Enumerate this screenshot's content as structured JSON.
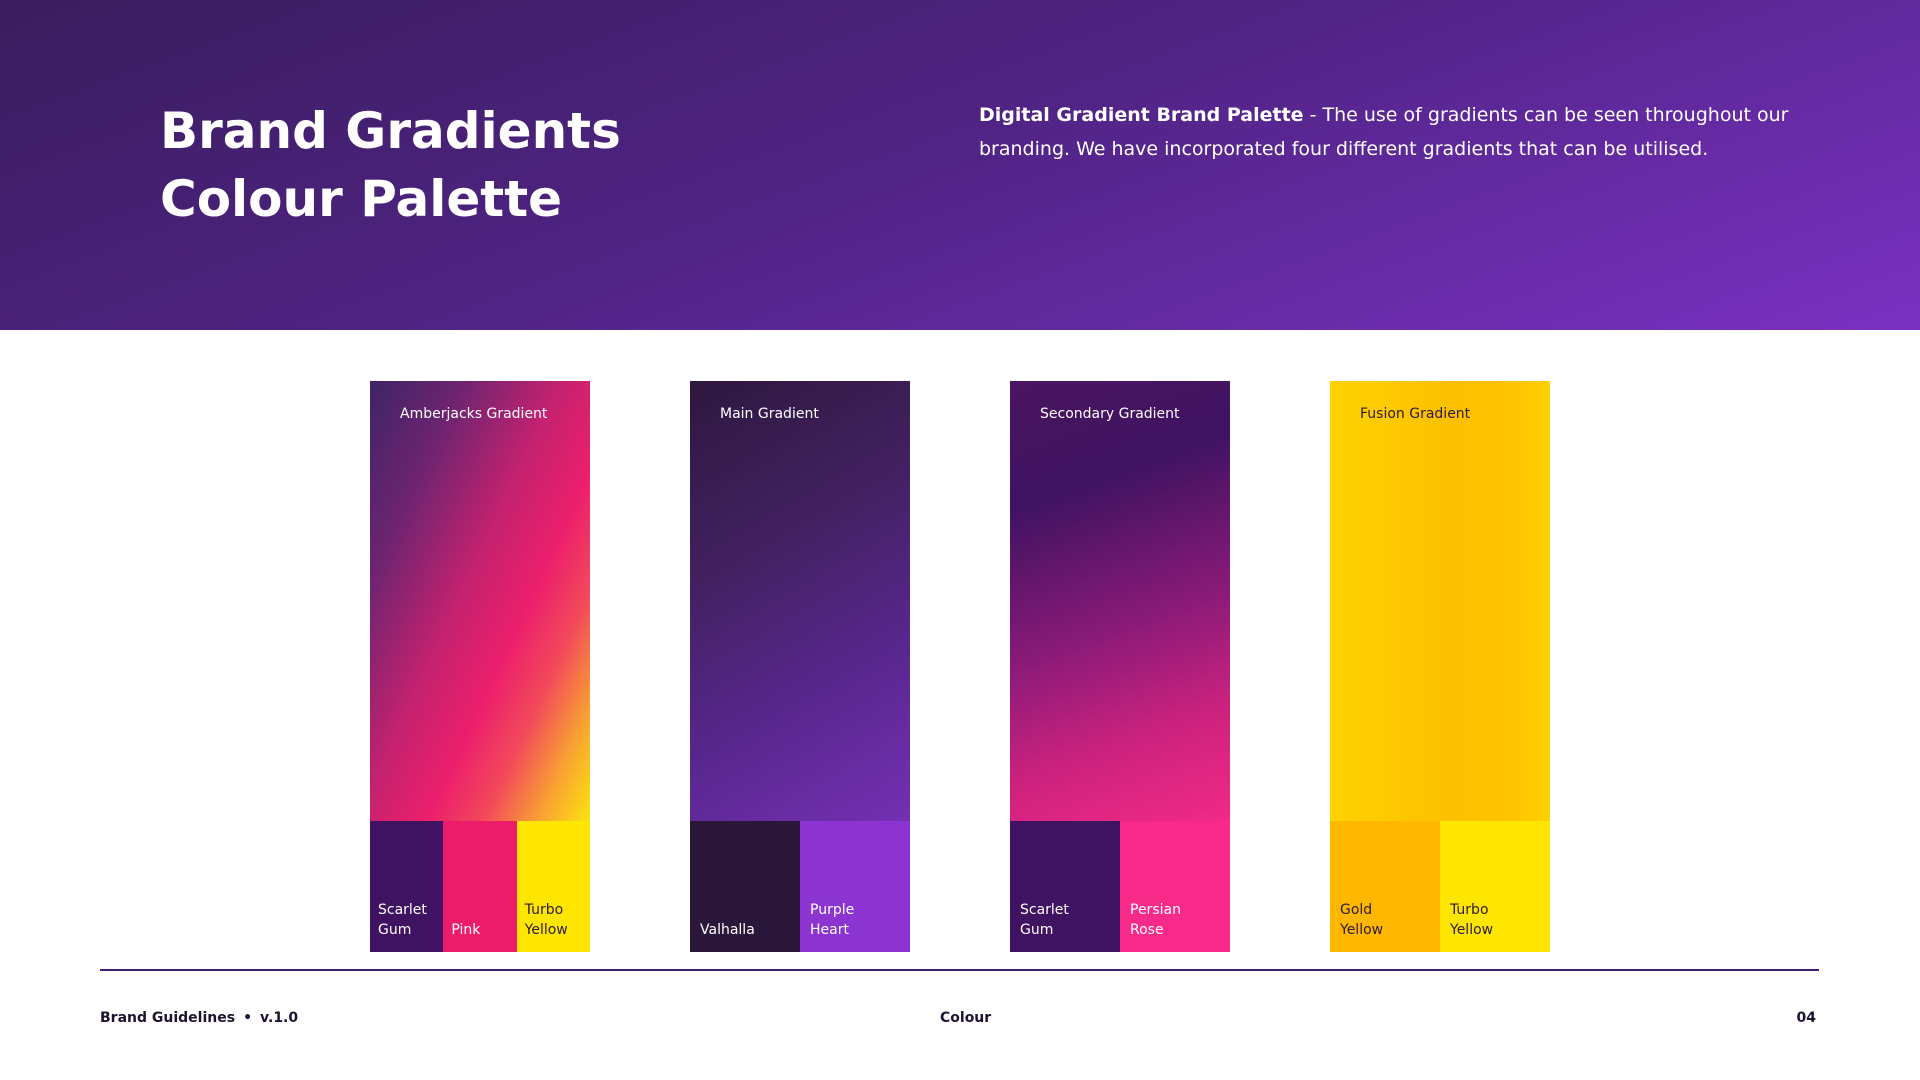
{
  "header": {
    "title_line1": "Brand Gradients",
    "title_line2": "Colour Palette",
    "description_bold": "Digital Gradient Brand Palette",
    "description_rest": " - The use of gradients can be seen throughout our branding. We have incorporated four different gradients that can be utilised.",
    "background_colors": [
      "#3a1d5e",
      "#7a31c2"
    ]
  },
  "gradients": [
    {
      "label": "Amberjacks Gradient",
      "swatches": [
        {
          "name": "Scarlet Gum",
          "color": "#3f1361"
        },
        {
          "name": "Pink",
          "color": "#ec1c6a"
        },
        {
          "name": "Turbo Yellow",
          "color": "#ffe600"
        }
      ]
    },
    {
      "label": "Main Gradient",
      "swatches": [
        {
          "name": "Valhalla",
          "color": "#2a173a"
        },
        {
          "name": "Purple Heart",
          "color": "#8b34d1"
        }
      ]
    },
    {
      "label": "Secondary Gradient",
      "swatches": [
        {
          "name": "Scarlet Gum",
          "color": "#3f1361"
        },
        {
          "name": "Persian Rose",
          "color": "#f72a8a"
        }
      ]
    },
    {
      "label": "Fusion Gradient",
      "swatches": [
        {
          "name": "Gold Yellow",
          "color": "#ffb700"
        },
        {
          "name": "Turbo Yellow",
          "color": "#ffe600"
        }
      ]
    }
  ],
  "footer": {
    "brand": "Brand Guidelines",
    "separator": "•",
    "version": "v.1.0",
    "section": "Colour",
    "page": "04"
  }
}
